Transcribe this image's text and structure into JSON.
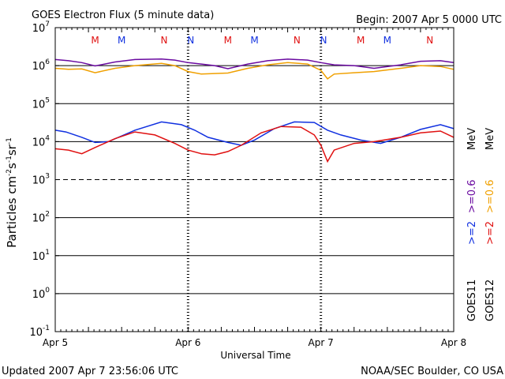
{
  "header": {
    "title": "GOES Electron Flux (5 minute data)",
    "begin": "Begin: 2007 Apr 5 0000 UTC"
  },
  "footer": {
    "updated": "Updated 2007 Apr  7 23:56:06 UTC",
    "source": "NOAA/SEC Boulder, CO USA"
  },
  "colors": {
    "purple": "#6a0aa0",
    "orange": "#f0a000",
    "blue": "#1030e0",
    "red": "#e01010",
    "m_marker": "#e01010",
    "n_marker": "#1030e0"
  },
  "chart_data": {
    "type": "line",
    "title": "GOES Electron Flux (5 minute data)",
    "xlabel": "Universal Time",
    "ylabel_text": "Particles cm-2 s-1 sr-1",
    "yscale": "log",
    "ylim": [
      0.1,
      10000000
    ],
    "xlim": [
      0,
      3
    ],
    "x_ticks": [
      {
        "x": 0,
        "label": "Apr 5"
      },
      {
        "x": 1,
        "label": "Apr 6"
      },
      {
        "x": 2,
        "label": "Apr 7"
      },
      {
        "x": 3,
        "label": "Apr 8"
      }
    ],
    "y_ticks": [
      {
        "base": "10",
        "exp": "7"
      },
      {
        "base": "10",
        "exp": "6"
      },
      {
        "base": "10",
        "exp": "5"
      },
      {
        "base": "10",
        "exp": "4"
      },
      {
        "base": "10",
        "exp": "3"
      },
      {
        "base": "10",
        "exp": "2"
      },
      {
        "base": "10",
        "exp": "1"
      },
      {
        "base": "10",
        "exp": "0"
      },
      {
        "base": "10",
        "exp": "-1"
      }
    ],
    "threshold_line": 1000,
    "markers": [
      {
        "label": "M",
        "x": 0.3,
        "color": "red"
      },
      {
        "label": "M",
        "x": 0.5,
        "color": "blue"
      },
      {
        "label": "N",
        "x": 0.82,
        "color": "red"
      },
      {
        "label": "N",
        "x": 1.02,
        "color": "blue"
      },
      {
        "label": "M",
        "x": 1.3,
        "color": "red"
      },
      {
        "label": "M",
        "x": 1.5,
        "color": "blue"
      },
      {
        "label": "N",
        "x": 1.82,
        "color": "red"
      },
      {
        "label": "N",
        "x": 2.02,
        "color": "blue"
      },
      {
        "label": "M",
        "x": 2.3,
        "color": "red"
      },
      {
        "label": "M",
        "x": 2.5,
        "color": "blue"
      },
      {
        "label": "N",
        "x": 2.82,
        "color": "red"
      },
      {
        "label": "N",
        "x": 3.02,
        "color": "blue"
      }
    ],
    "legend": {
      "goes11": "GOES11",
      "goes12": "GOES12",
      "goes11_e2": ">=2",
      "goes11_e06": ">=0.6",
      "goes12_e2": ">=2",
      "goes12_e06": ">=0.6",
      "mev": "MeV"
    },
    "series": [
      {
        "name": "GOES11 >=0.6 MeV",
        "color": "purple",
        "x": [
          0,
          0.1,
          0.2,
          0.3,
          0.45,
          0.6,
          0.8,
          0.9,
          1.0,
          1.1,
          1.2,
          1.3,
          1.45,
          1.6,
          1.75,
          1.9,
          2.0,
          2.1,
          2.25,
          2.4,
          2.6,
          2.75,
          2.9,
          3.0
        ],
        "values": [
          1450000,
          1350000,
          1200000,
          980000,
          1250000,
          1450000,
          1500000,
          1400000,
          1200000,
          1100000,
          1000000,
          830000,
          1100000,
          1350000,
          1480000,
          1400000,
          1200000,
          1050000,
          1000000,
          850000,
          1050000,
          1300000,
          1350000,
          1200000
        ]
      },
      {
        "name": "GOES12 >=0.6 MeV",
        "color": "orange",
        "x": [
          0,
          0.1,
          0.2,
          0.3,
          0.45,
          0.6,
          0.8,
          0.9,
          1.0,
          1.1,
          1.2,
          1.3,
          1.45,
          1.6,
          1.75,
          1.9,
          2.0,
          2.05,
          2.1,
          2.25,
          2.4,
          2.6,
          2.75,
          2.9,
          3.0
        ],
        "values": [
          850000,
          800000,
          820000,
          650000,
          850000,
          1000000,
          1150000,
          1000000,
          700000,
          600000,
          620000,
          640000,
          850000,
          1050000,
          1200000,
          1100000,
          750000,
          450000,
          600000,
          650000,
          700000,
          850000,
          1000000,
          950000,
          800000
        ]
      },
      {
        "name": "GOES11 >=2 MeV",
        "color": "blue",
        "x": [
          0,
          0.08,
          0.2,
          0.3,
          0.4,
          0.6,
          0.8,
          0.95,
          1.05,
          1.15,
          1.3,
          1.4,
          1.5,
          1.65,
          1.8,
          1.95,
          2.05,
          2.15,
          2.3,
          2.45,
          2.6,
          2.75,
          2.9,
          3.0
        ],
        "values": [
          20000,
          18000,
          13000,
          9500,
          10000,
          20000,
          33000,
          28000,
          20000,
          13000,
          9500,
          8000,
          11000,
          22000,
          33000,
          32000,
          20000,
          15000,
          11000,
          9000,
          13000,
          21000,
          28000,
          22000
        ]
      },
      {
        "name": "GOES12 >=2 MeV",
        "color": "red",
        "x": [
          0,
          0.1,
          0.2,
          0.3,
          0.45,
          0.6,
          0.75,
          0.9,
          1.0,
          1.1,
          1.2,
          1.3,
          1.4,
          1.55,
          1.7,
          1.85,
          1.95,
          2.0,
          2.05,
          2.1,
          2.25,
          2.4,
          2.6,
          2.75,
          2.9,
          3.0
        ],
        "values": [
          6500,
          6000,
          4800,
          7000,
          12000,
          18000,
          15000,
          9000,
          6000,
          4800,
          4500,
          5500,
          8000,
          17000,
          25000,
          24000,
          15000,
          8000,
          3000,
          6000,
          9000,
          10000,
          13000,
          17000,
          19000,
          13000
        ]
      }
    ]
  }
}
